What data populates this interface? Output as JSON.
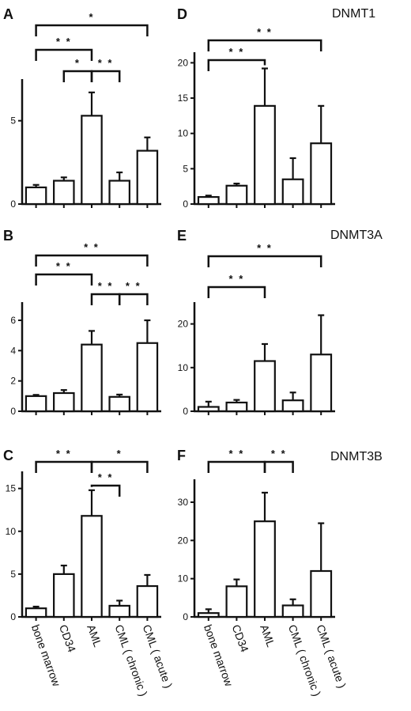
{
  "gene_labels": [
    "DNMT1",
    "DNMT3A",
    "DNMT3B"
  ],
  "categories": [
    "bone marrow",
    "CD34",
    "AML",
    "CML ( chronic )",
    "CML ( acute )"
  ],
  "chart_data": [
    {
      "panel": "A",
      "type": "bar",
      "categories": [
        "bone marrow",
        "CD34",
        "AML",
        "CML ( chronic )",
        "CML ( acute )"
      ],
      "values": [
        1.0,
        1.4,
        5.3,
        1.4,
        3.2
      ],
      "errors": [
        0.15,
        0.2,
        1.4,
        0.5,
        0.8
      ],
      "ylim": [
        0,
        7.5
      ],
      "yticks": [
        0,
        5
      ],
      "ytick_labels": [
        "0",
        "5"
      ],
      "comparisons": [
        {
          "from": 0,
          "to": 4,
          "label": "*"
        },
        {
          "from": 0,
          "to": 2,
          "label": "* *"
        },
        {
          "from": 1,
          "to": 2,
          "label": "*"
        },
        {
          "from": 2,
          "to": 3,
          "label": "* *"
        }
      ]
    },
    {
      "panel": "B",
      "type": "bar",
      "categories": [
        "bone marrow",
        "CD34",
        "AML",
        "CML ( chronic )",
        "CML ( acute )"
      ],
      "values": [
        1.0,
        1.2,
        4.4,
        0.95,
        4.5
      ],
      "errors": [
        0.08,
        0.2,
        0.9,
        0.15,
        1.5
      ],
      "ylim": [
        0,
        7.2
      ],
      "yticks": [
        0,
        2,
        4,
        6
      ],
      "ytick_labels": [
        "0",
        "2",
        "4",
        "6"
      ],
      "comparisons": [
        {
          "from": 0,
          "to": 4,
          "label": "* *"
        },
        {
          "from": 0,
          "to": 2,
          "label": "* *"
        },
        {
          "from": 2,
          "to": 3,
          "label": "* *"
        },
        {
          "from": 3,
          "to": 4,
          "label": "* *"
        }
      ]
    },
    {
      "panel": "C",
      "type": "bar",
      "categories": [
        "bone marrow",
        "CD34",
        "AML",
        "CML ( chronic )",
        "CML ( acute )"
      ],
      "values": [
        1.0,
        5.0,
        11.8,
        1.3,
        3.6
      ],
      "errors": [
        0.2,
        1.0,
        3.0,
        0.6,
        1.3
      ],
      "ylim": [
        0,
        17
      ],
      "yticks": [
        0,
        5,
        10,
        15
      ],
      "ytick_labels": [
        "0",
        "5",
        "10",
        "15"
      ],
      "comparisons": [
        {
          "from": 0,
          "to": 2,
          "label": "* *"
        },
        {
          "from": 2,
          "to": 4,
          "label": "*"
        },
        {
          "from": 2,
          "to": 3,
          "label": "* *"
        }
      ]
    },
    {
      "panel": "D",
      "type": "bar",
      "categories": [
        "bone marrow",
        "CD34",
        "AML",
        "CML ( chronic )",
        "CML ( acute )"
      ],
      "values": [
        1.0,
        2.6,
        13.9,
        3.5,
        8.6
      ],
      "errors": [
        0.2,
        0.3,
        5.3,
        3.0,
        5.3
      ],
      "ylim": [
        0,
        21.5
      ],
      "yticks": [
        0,
        5,
        10,
        15,
        20
      ],
      "ytick_labels": [
        "0",
        "5",
        "10",
        "15",
        "20"
      ],
      "comparisons": [
        {
          "from": 0,
          "to": 4,
          "label": "* *"
        },
        {
          "from": 0,
          "to": 2,
          "label": "* *"
        }
      ]
    },
    {
      "panel": "E",
      "type": "bar",
      "categories": [
        "bone marrow",
        "CD34",
        "AML",
        "CML ( chronic )",
        "CML ( acute )"
      ],
      "values": [
        1.0,
        2.0,
        11.5,
        2.5,
        13.0
      ],
      "errors": [
        1.2,
        0.6,
        3.9,
        1.8,
        9.0
      ],
      "ylim": [
        0,
        25
      ],
      "yticks": [
        0,
        10,
        20
      ],
      "ytick_labels": [
        "0",
        "10",
        "20"
      ],
      "comparisons": [
        {
          "from": 0,
          "to": 4,
          "label": "* *"
        },
        {
          "from": 0,
          "to": 2,
          "label": "* *"
        }
      ]
    },
    {
      "panel": "F",
      "type": "bar",
      "categories": [
        "bone marrow",
        "CD34",
        "AML",
        "CML ( chronic )",
        "CML ( acute )"
      ],
      "values": [
        1.0,
        8.0,
        25.0,
        3.0,
        12.0
      ],
      "errors": [
        1.0,
        1.8,
        7.5,
        1.6,
        12.5
      ],
      "ylim": [
        0,
        36
      ],
      "yticks": [
        0,
        10,
        20,
        30
      ],
      "ytick_labels": [
        "0",
        "10",
        "20",
        "30"
      ],
      "comparisons": [
        {
          "from": 0,
          "to": 2,
          "label": "* *"
        },
        {
          "from": 2,
          "to": 3,
          "label": "* *"
        }
      ]
    }
  ]
}
